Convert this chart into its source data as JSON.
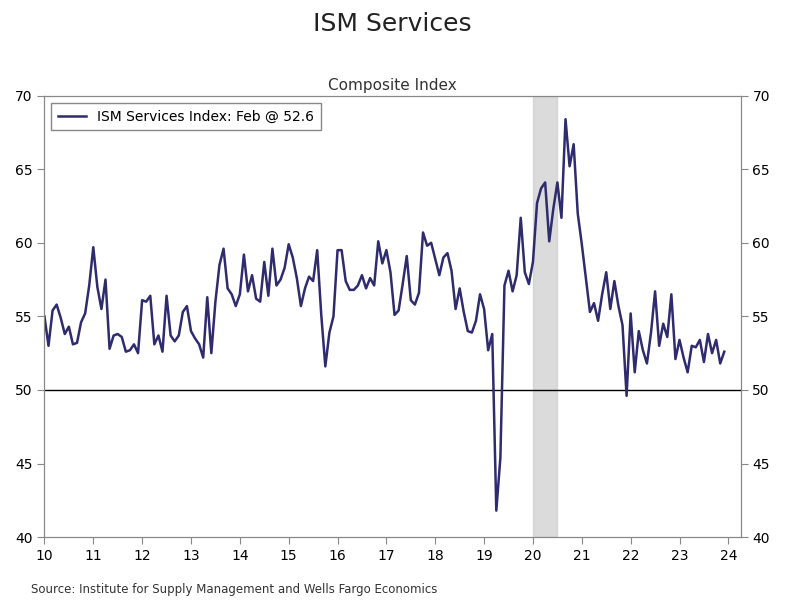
{
  "title": "ISM Services",
  "subtitle": "Composite Index",
  "legend_label": "ISM Services Index: Feb @ 52.6",
  "source": "Source: Institute for Supply Management and Wells Fargo Economics",
  "line_color": "#2E2B6E",
  "line_width": 1.8,
  "hline_y": 50,
  "hline_color": "#000000",
  "shade_xmin": 20.0,
  "shade_xmax": 20.5,
  "shade_color": "#CCCCCC",
  "shade_alpha": 0.7,
  "ylim": [
    40,
    70
  ],
  "yticks": [
    40,
    45,
    50,
    55,
    60,
    65,
    70
  ],
  "xlim": [
    10,
    24.25
  ],
  "xticks": [
    10,
    11,
    12,
    13,
    14,
    15,
    16,
    17,
    18,
    19,
    20,
    21,
    22,
    23,
    24
  ],
  "bg_color": "#FFFFFF",
  "values": [
    55.0,
    53.0,
    55.4,
    55.8,
    54.9,
    53.8,
    54.3,
    53.1,
    53.2,
    54.6,
    55.2,
    57.1,
    59.7,
    57.0,
    55.5,
    57.5,
    52.8,
    53.7,
    53.8,
    53.6,
    52.6,
    52.7,
    53.1,
    52.5,
    56.1,
    56.0,
    56.4,
    53.1,
    53.7,
    52.6,
    56.4,
    53.7,
    53.3,
    53.7,
    55.3,
    55.7,
    54.0,
    53.5,
    53.1,
    52.2,
    56.3,
    52.5,
    56.0,
    58.5,
    59.6,
    56.9,
    56.5,
    55.7,
    56.5,
    59.2,
    56.7,
    57.8,
    56.2,
    56.0,
    58.7,
    56.4,
    59.6,
    57.1,
    57.5,
    58.3,
    59.9,
    59.0,
    57.6,
    55.7,
    56.9,
    57.7,
    57.4,
    59.5,
    55.1,
    51.6,
    53.9,
    55.0,
    59.5,
    59.5,
    57.4,
    56.8,
    56.8,
    57.1,
    57.8,
    56.9,
    57.6,
    57.1,
    60.1,
    58.6,
    59.5,
    58.0,
    55.1,
    55.4,
    57.2,
    59.1,
    56.1,
    55.8,
    56.6,
    60.7,
    59.8,
    60.0,
    58.9,
    57.8,
    59.0,
    59.3,
    58.1,
    55.5,
    56.9,
    55.3,
    54.0,
    53.9,
    54.7,
    56.5,
    55.5,
    52.7,
    53.8,
    41.8,
    45.4,
    57.1,
    58.1,
    56.7,
    57.8,
    61.7,
    58.0,
    57.2,
    58.7,
    62.7,
    63.7,
    64.1,
    60.1,
    62.3,
    64.1,
    61.7,
    68.4,
    65.2,
    66.7,
    62.0,
    59.9,
    57.6,
    55.3,
    55.9,
    54.7,
    56.5,
    58.0,
    55.5,
    57.4,
    55.7,
    54.4,
    49.6,
    55.2,
    51.2,
    54.0,
    52.7,
    51.8,
    53.9,
    56.7,
    53.0,
    54.5,
    53.6,
    56.5,
    52.1,
    53.4,
    52.2,
    51.2,
    53.0,
    52.9,
    53.4,
    51.9,
    53.8,
    52.5,
    53.4,
    51.8,
    52.6
  ],
  "start_year_2digit": 10,
  "start_month": 1
}
